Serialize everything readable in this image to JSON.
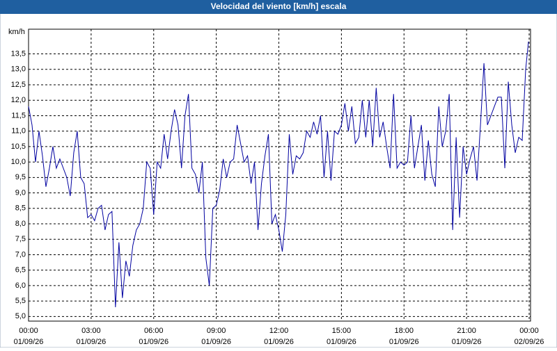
{
  "chart_data": {
    "type": "line",
    "title": "Velocidad del viento [km/h] escala",
    "y_label": "km/h",
    "x": [
      0,
      10,
      20,
      30,
      40,
      50,
      60,
      70,
      80,
      90,
      100,
      110,
      120,
      130,
      140,
      150,
      160,
      170,
      180,
      190,
      200,
      210,
      220,
      230,
      240,
      250,
      260,
      270,
      280,
      290,
      300,
      310,
      320,
      330,
      340,
      350,
      360,
      370,
      380,
      390,
      400,
      410,
      420,
      430,
      440,
      450,
      460,
      470,
      480,
      490,
      500,
      510,
      520,
      530,
      540,
      550,
      560,
      570,
      580,
      590,
      600,
      610,
      620,
      630,
      640,
      650,
      660,
      670,
      680,
      690,
      700,
      710,
      720,
      730,
      740,
      750,
      760,
      770,
      780,
      790,
      800,
      810,
      820,
      830,
      840,
      850,
      860,
      870,
      880,
      890,
      900,
      910,
      920,
      930,
      940,
      950,
      960,
      970,
      980,
      990,
      1000,
      1010,
      1020,
      1030,
      1040,
      1050,
      1060,
      1070,
      1080,
      1090,
      1100,
      1110,
      1120,
      1130,
      1140,
      1150,
      1160,
      1170,
      1180,
      1190,
      1200,
      1210,
      1220,
      1230,
      1240,
      1250,
      1260,
      1270,
      1280,
      1290,
      1300,
      1310,
      1320,
      1330,
      1340,
      1350,
      1360,
      1370,
      1380,
      1390,
      1400,
      1410,
      1420,
      1430,
      1438
    ],
    "series": [
      {
        "name": "Velocidad del viento",
        "color": "#0000a0",
        "values": [
          11.8,
          11.2,
          10.0,
          11.0,
          10.2,
          9.2,
          9.8,
          10.5,
          9.8,
          10.1,
          9.8,
          9.5,
          8.9,
          10.3,
          11.0,
          9.5,
          9.3,
          8.2,
          8.3,
          8.1,
          8.5,
          8.6,
          7.8,
          8.3,
          8.4,
          5.3,
          7.4,
          5.6,
          6.8,
          6.3,
          7.3,
          7.8,
          8.0,
          8.5,
          10.0,
          9.8,
          8.3,
          10.0,
          9.8,
          10.9,
          10.1,
          11.0,
          11.7,
          11.2,
          9.8,
          11.5,
          12.2,
          9.8,
          9.6,
          9.0,
          10.0,
          6.9,
          6.0,
          8.5,
          8.6,
          9.1,
          10.1,
          9.5,
          10.0,
          10.1,
          11.2,
          10.6,
          10.0,
          10.2,
          9.3,
          10.0,
          7.8,
          9.3,
          10.2,
          10.9,
          8.0,
          8.3,
          7.8,
          7.1,
          8.3,
          10.9,
          9.6,
          10.2,
          10.1,
          10.3,
          11.0,
          10.8,
          11.3,
          10.9,
          11.5,
          9.5,
          11.0,
          9.4,
          11.0,
          10.9,
          11.2,
          11.9,
          11.0,
          11.8,
          10.6,
          10.8,
          12.0,
          10.8,
          12.0,
          10.5,
          12.4,
          10.8,
          11.3,
          10.5,
          9.8,
          12.2,
          9.8,
          10.0,
          9.9,
          10.0,
          11.5,
          9.8,
          10.5,
          11.2,
          9.4,
          10.7,
          9.6,
          9.2,
          11.8,
          10.5,
          11.0,
          12.2,
          7.8,
          10.8,
          8.2,
          10.5,
          9.6,
          10.1,
          10.5,
          9.4,
          11.2,
          13.2,
          11.2,
          11.5,
          11.8,
          12.1,
          12.1,
          9.8,
          12.6,
          11.2,
          10.3,
          10.8,
          10.7,
          13.0,
          13.9
        ]
      }
    ],
    "xlim": [
      0,
      1444
    ],
    "ylim": [
      4.85,
      14.3
    ],
    "xticks": [
      {
        "value": 0,
        "label": "00:00",
        "date": "01/09/26"
      },
      {
        "value": 180,
        "label": "03:00",
        "date": "01/09/26"
      },
      {
        "value": 360,
        "label": "06:00",
        "date": "01/09/26"
      },
      {
        "value": 540,
        "label": "09:00",
        "date": "01/09/26"
      },
      {
        "value": 720,
        "label": "12:00",
        "date": "01/09/26"
      },
      {
        "value": 900,
        "label": "15:00",
        "date": "01/09/26"
      },
      {
        "value": 1080,
        "label": "18:00",
        "date": "01/09/26"
      },
      {
        "value": 1260,
        "label": "21:00",
        "date": "01/09/26"
      },
      {
        "value": 1440,
        "label": "00:00",
        "date": "02/09/26"
      }
    ],
    "yticks": [
      {
        "value": 5,
        "label": "5,0"
      },
      {
        "value": 5.5,
        "label": "5,5"
      },
      {
        "value": 6,
        "label": "6,0"
      },
      {
        "value": 6.5,
        "label": "6,5"
      },
      {
        "value": 7,
        "label": "7,0"
      },
      {
        "value": 7.5,
        "label": "7,5"
      },
      {
        "value": 8,
        "label": "8,0"
      },
      {
        "value": 8.5,
        "label": "8,5"
      },
      {
        "value": 9,
        "label": "9,0"
      },
      {
        "value": 9.5,
        "label": "9,5"
      },
      {
        "value": 10,
        "label": "10,0"
      },
      {
        "value": 10.5,
        "label": "10,5"
      },
      {
        "value": 11,
        "label": "11,0"
      },
      {
        "value": 11.5,
        "label": "11,5"
      },
      {
        "value": 12,
        "label": "12,0"
      },
      {
        "value": 12.5,
        "label": "12,5"
      },
      {
        "value": 13,
        "label": "13,0"
      },
      {
        "value": 13.5,
        "label": "13,5"
      }
    ],
    "grid": true
  }
}
